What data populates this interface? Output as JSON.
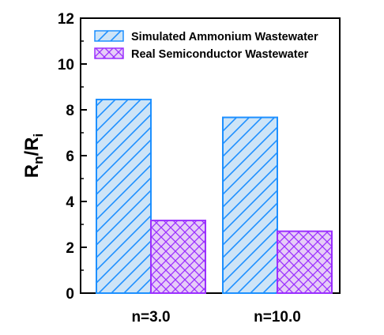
{
  "chart_data": {
    "type": "bar",
    "categories": [
      "n=3.0",
      "n=10.0"
    ],
    "series": [
      {
        "name": "Simulated Ammonium Wastewater",
        "values": [
          8.45,
          7.67
        ],
        "color": "#1e90ff",
        "fill": "#cde4f7",
        "pattern": "diagonal"
      },
      {
        "name": "Real Semiconductor Wastewater",
        "values": [
          3.17,
          2.7
        ],
        "color": "#9b30ff",
        "fill": "#e6cdf7",
        "pattern": "crosshatch"
      }
    ],
    "ylabel_main": "R",
    "ylabel_sub1": "n",
    "ylabel_slash": "/R",
    "ylabel_sub2": "i",
    "ylim": [
      0,
      12
    ],
    "yticks": [
      "0",
      "2",
      "4",
      "6",
      "8",
      "10",
      "12"
    ],
    "legend_position": "top-left",
    "grid": false
  }
}
